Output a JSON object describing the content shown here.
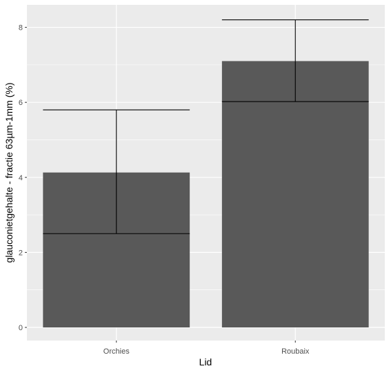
{
  "chart_data": {
    "type": "bar",
    "xlabel": "Lid",
    "ylabel": "glauconietgehalte - fractie 63µm-1mm (%)",
    "categories": [
      "Orchies",
      "Roubaix"
    ],
    "values": [
      4.13,
      7.1
    ],
    "error_low": [
      2.5,
      6.02
    ],
    "error_high": [
      5.8,
      8.2
    ],
    "ylim": [
      -0.35,
      8.6
    ],
    "yticks": [
      0,
      2,
      4,
      6,
      8
    ],
    "grid": true,
    "colors": {
      "panel": "#ebebeb",
      "grid_major": "#ffffff",
      "bar": "#595959",
      "errorbar": "#000000"
    }
  }
}
